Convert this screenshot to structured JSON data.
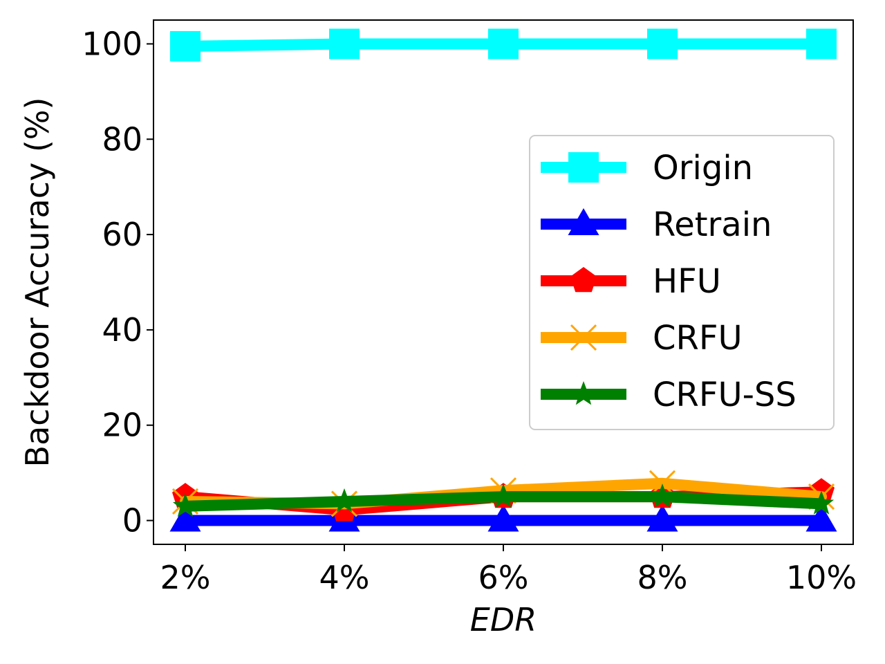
{
  "chart_data": {
    "type": "line",
    "categories": [
      "2%",
      "4%",
      "6%",
      "8%",
      "10%"
    ],
    "xlabel": "EDR",
    "ylabel": "Backdoor Accuracy (%)",
    "ylim": [
      -5,
      105
    ],
    "yticks": [
      0,
      20,
      40,
      60,
      80,
      100
    ],
    "grid": false,
    "legend_position": "center-right",
    "series": [
      {
        "name": "Origin",
        "values": [
          99.5,
          100.0,
          100.0,
          100.0,
          100.0
        ],
        "color": "#00ffff",
        "marker": "square"
      },
      {
        "name": "Retrain",
        "values": [
          0.0,
          0.0,
          0.0,
          0.0,
          0.0
        ],
        "color": "#0000ff",
        "marker": "triangle"
      },
      {
        "name": "HFU",
        "values": [
          5.0,
          2.2,
          5.0,
          5.0,
          6.0
        ],
        "color": "#ff0000",
        "marker": "pentagon"
      },
      {
        "name": "CRFU",
        "values": [
          4.0,
          3.5,
          6.3,
          7.8,
          5.0
        ],
        "color": "#ffa500",
        "marker": "x"
      },
      {
        "name": "CRFU-SS",
        "values": [
          3.0,
          4.0,
          5.0,
          5.0,
          3.5
        ],
        "color": "#008000",
        "marker": "star"
      }
    ]
  }
}
